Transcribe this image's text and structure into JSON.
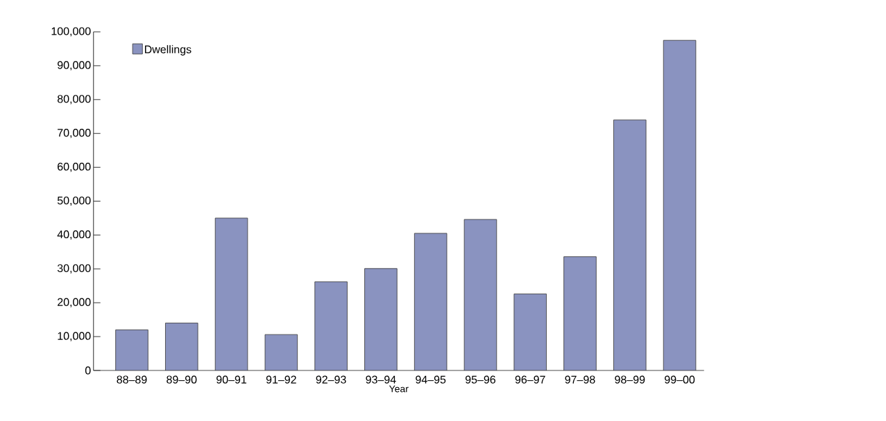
{
  "chart_data": {
    "type": "bar",
    "xlabel": "Year",
    "categories": [
      "88–89",
      "89–90",
      "90–91",
      "91–92",
      "92–93",
      "93–94",
      "94–95",
      "95–96",
      "96–97",
      "97–98",
      "98–99",
      "99–00"
    ],
    "series": [
      {
        "name": "Dwellings",
        "color": "#8a93c0",
        "values": [
          12000,
          14000,
          45000,
          10600,
          26200,
          30100,
          40500,
          44600,
          22600,
          33600,
          74000,
          97500
        ]
      }
    ],
    "ylim": [
      0,
      100000
    ],
    "yticks": [
      0,
      {
        "value": 10000,
        "label": "10,000"
      },
      {
        "value": 20000,
        "label": "20,000"
      },
      {
        "value": 30000,
        "label": "30,000"
      },
      {
        "value": 40000,
        "label": "40,000"
      },
      {
        "value": 50000,
        "label": "50,000"
      },
      {
        "value": 60000,
        "label": "60,000"
      },
      {
        "value": 70000,
        "label": "70,000"
      },
      {
        "value": 80000,
        "label": "80,000"
      },
      {
        "value": 90000,
        "label": "90,000"
      },
      {
        "value": 100000,
        "label": "100,000"
      }
    ],
    "legend": "top left",
    "grid": false
  }
}
